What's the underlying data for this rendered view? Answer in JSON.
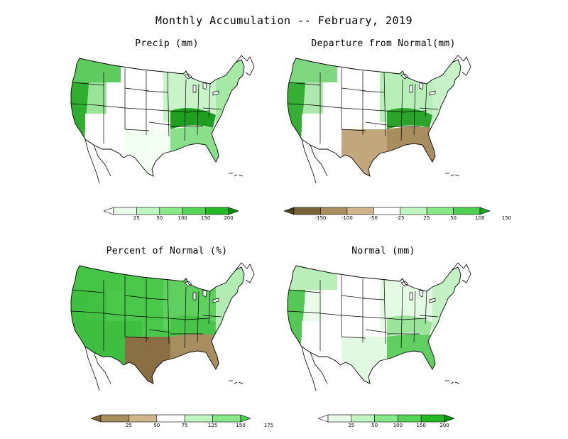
{
  "figure": {
    "title": "Monthly Accumulation -- February, 2019"
  },
  "panels": [
    {
      "id": "precip",
      "title": "Precip (mm)",
      "legend": {
        "type": "sequential",
        "ticks": [
          "25",
          "50",
          "100",
          "150",
          "200"
        ],
        "colors": [
          "#ffffff",
          "#e8fbe8",
          "#bff5bf",
          "#86e886",
          "#55d455",
          "#25b825",
          "#0a8f0a"
        ]
      },
      "map_fill": {
        "west_coast": "#2fae2f",
        "pacific_nw": "#5ecb5e",
        "rockies": "#9ae49a",
        "plains": "#ffffff",
        "midwest": "#c9f3c9",
        "ohio_valley": "#1f9f1f",
        "southeast": "#8ae08a",
        "northeast": "#a5e9a5",
        "southwest": "#ffffff",
        "texas": "#f4fff4"
      }
    },
    {
      "id": "departure",
      "title": "Departure from Normal(mm)",
      "legend": {
        "type": "diverging",
        "ticks": [
          "-150",
          "-100",
          "-50",
          "-25",
          "25",
          "50",
          "100",
          "150"
        ],
        "colors": [
          "#4f3f1f",
          "#7a6338",
          "#a88d5e",
          "#d0b48c",
          "#ffffff",
          "#bff5bf",
          "#86e886",
          "#4fcf4f",
          "#1fa81f"
        ]
      },
      "map_fill": {
        "west_coast": "#35b035",
        "pacific_nw": "#7fd87f",
        "rockies": "#aee8ae",
        "plains": "#ffffff",
        "midwest": "#b8efb8",
        "ohio_valley": "#2aa52a",
        "southeast": "#a88d5e",
        "northeast": "#c7f2c7",
        "southwest": "#ffffff",
        "texas": "#c2a67c"
      }
    },
    {
      "id": "percent",
      "title": "Percent of Normal (%)",
      "legend": {
        "type": "diverging",
        "ticks": [
          "25",
          "50",
          "75",
          "125",
          "150",
          "175"
        ],
        "colors": [
          "#7a6338",
          "#a88d5e",
          "#d0b48c",
          "#ffffff",
          "#bff5bf",
          "#86e886",
          "#4fcf4f"
        ]
      },
      "map_fill": {
        "west_coast": "#3fbf3f",
        "pacific_nw": "#46c446",
        "rockies": "#42c142",
        "plains": "#4ac84a",
        "midwest": "#5fd05f",
        "ohio_valley": "#48c548",
        "southeast": "#a88d5e",
        "northeast": "#b2ecb2",
        "southwest": "#3fbf3f",
        "texas": "#8a6f44"
      }
    },
    {
      "id": "normal",
      "title": "Normal (mm)",
      "legend": {
        "type": "sequential",
        "ticks": [
          "25",
          "50",
          "100",
          "150",
          "200"
        ],
        "colors": [
          "#ffffff",
          "#e8fbe8",
          "#bff5bf",
          "#86e886",
          "#55d455",
          "#25b825",
          "#0a8f0a"
        ]
      },
      "map_fill": {
        "west_coast": "#55c955",
        "pacific_nw": "#b9eeb9",
        "rockies": "#ecfcec",
        "plains": "#ffffff",
        "midwest": "#e4fae4",
        "ohio_valley": "#9be59b",
        "southeast": "#5fd05f",
        "northeast": "#c3f1c3",
        "southwest": "#ffffff",
        "texas": "#e0f9e0"
      }
    }
  ]
}
